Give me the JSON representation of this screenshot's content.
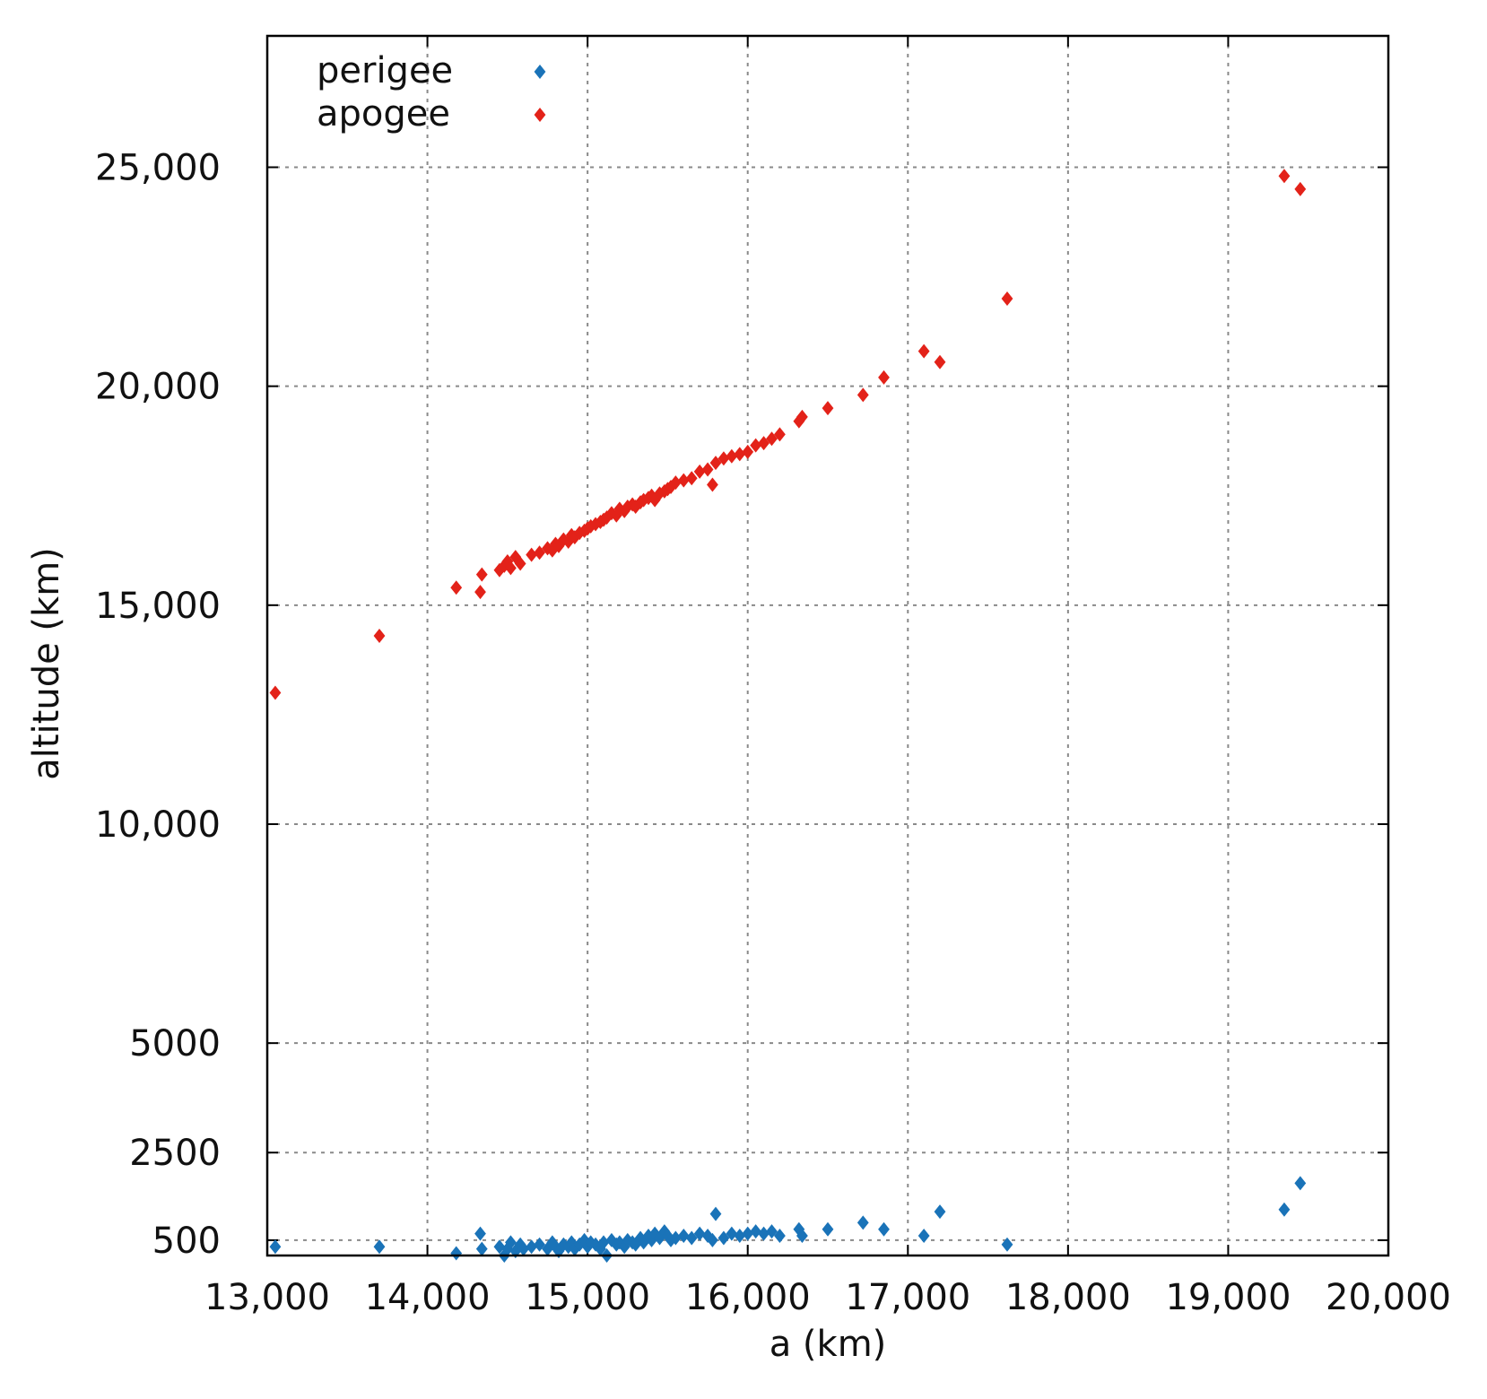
{
  "chart_data": {
    "type": "scatter",
    "title": "",
    "xlabel": "a (km)",
    "ylabel": "altitude (km)",
    "xlim": [
      13000,
      20000
    ],
    "ylim": [
      150,
      28000
    ],
    "grid": true,
    "legend_position": "top-left",
    "x_ticks": [
      13000,
      14000,
      15000,
      16000,
      17000,
      18000,
      19000,
      20000
    ],
    "x_tick_labels": [
      "13,000",
      "14,000",
      "15,000",
      "16,000",
      "17,000",
      "18,000",
      "19,000",
      "20,000"
    ],
    "y_ticks": [
      500,
      2500,
      5000,
      10000,
      15000,
      20000,
      25000
    ],
    "y_tick_labels": [
      "500",
      "2500",
      "5000",
      "10,000",
      "15,000",
      "20,000",
      "25,000"
    ],
    "series": [
      {
        "name": "perigee",
        "color": "#1a73b8",
        "marker": "diamond",
        "points": [
          [
            13050,
            350
          ],
          [
            13700,
            350
          ],
          [
            14180,
            200
          ],
          [
            14330,
            650
          ],
          [
            14340,
            300
          ],
          [
            14450,
            350
          ],
          [
            14480,
            150
          ],
          [
            14500,
            300
          ],
          [
            14520,
            450
          ],
          [
            14550,
            250
          ],
          [
            14580,
            400
          ],
          [
            14600,
            300
          ],
          [
            14650,
            350
          ],
          [
            14700,
            400
          ],
          [
            14750,
            300
          ],
          [
            14780,
            450
          ],
          [
            14800,
            350
          ],
          [
            14820,
            250
          ],
          [
            14850,
            400
          ],
          [
            14880,
            350
          ],
          [
            14900,
            450
          ],
          [
            14920,
            300
          ],
          [
            14950,
            400
          ],
          [
            14980,
            500
          ],
          [
            15000,
            350
          ],
          [
            15020,
            450
          ],
          [
            15050,
            400
          ],
          [
            15080,
            300
          ],
          [
            15100,
            450
          ],
          [
            15120,
            150
          ],
          [
            15150,
            500
          ],
          [
            15180,
            400
          ],
          [
            15200,
            450
          ],
          [
            15230,
            350
          ],
          [
            15250,
            500
          ],
          [
            15280,
            450
          ],
          [
            15300,
            400
          ],
          [
            15330,
            550
          ],
          [
            15350,
            450
          ],
          [
            15380,
            600
          ],
          [
            15400,
            500
          ],
          [
            15420,
            650
          ],
          [
            15450,
            550
          ],
          [
            15480,
            700
          ],
          [
            15500,
            600
          ],
          [
            15520,
            500
          ],
          [
            15550,
            550
          ],
          [
            15600,
            600
          ],
          [
            15650,
            550
          ],
          [
            15700,
            650
          ],
          [
            15750,
            600
          ],
          [
            15780,
            500
          ],
          [
            15800,
            1100
          ],
          [
            15850,
            550
          ],
          [
            15900,
            650
          ],
          [
            15950,
            600
          ],
          [
            16000,
            650
          ],
          [
            16050,
            700
          ],
          [
            16100,
            650
          ],
          [
            16150,
            700
          ],
          [
            16200,
            600
          ],
          [
            16320,
            750
          ],
          [
            16340,
            600
          ],
          [
            16500,
            750
          ],
          [
            16720,
            900
          ],
          [
            16850,
            750
          ],
          [
            17100,
            600
          ],
          [
            17200,
            1150
          ],
          [
            17620,
            400
          ],
          [
            19350,
            1200
          ],
          [
            19450,
            1800
          ]
        ]
      },
      {
        "name": "apogee",
        "color": "#e32219",
        "marker": "diamond",
        "points": [
          [
            13050,
            13000
          ],
          [
            13700,
            14300
          ],
          [
            14180,
            15400
          ],
          [
            14330,
            15300
          ],
          [
            14340,
            15700
          ],
          [
            14450,
            15800
          ],
          [
            14480,
            15900
          ],
          [
            14500,
            16000
          ],
          [
            14520,
            15850
          ],
          [
            14550,
            16100
          ],
          [
            14580,
            15950
          ],
          [
            14650,
            16150
          ],
          [
            14700,
            16200
          ],
          [
            14750,
            16300
          ],
          [
            14780,
            16250
          ],
          [
            14800,
            16400
          ],
          [
            14820,
            16350
          ],
          [
            14850,
            16500
          ],
          [
            14880,
            16450
          ],
          [
            14900,
            16600
          ],
          [
            14920,
            16550
          ],
          [
            14950,
            16650
          ],
          [
            14980,
            16700
          ],
          [
            15000,
            16750
          ],
          [
            15020,
            16800
          ],
          [
            15050,
            16850
          ],
          [
            15080,
            16900
          ],
          [
            15100,
            16950
          ],
          [
            15120,
            17000
          ],
          [
            15150,
            17100
          ],
          [
            15180,
            17050
          ],
          [
            15200,
            17200
          ],
          [
            15230,
            17150
          ],
          [
            15250,
            17250
          ],
          [
            15280,
            17300
          ],
          [
            15300,
            17250
          ],
          [
            15330,
            17350
          ],
          [
            15350,
            17400
          ],
          [
            15380,
            17450
          ],
          [
            15400,
            17500
          ],
          [
            15420,
            17400
          ],
          [
            15450,
            17550
          ],
          [
            15480,
            17600
          ],
          [
            15500,
            17650
          ],
          [
            15520,
            17700
          ],
          [
            15550,
            17800
          ],
          [
            15600,
            17850
          ],
          [
            15650,
            17900
          ],
          [
            15700,
            18050
          ],
          [
            15750,
            18100
          ],
          [
            15780,
            17750
          ],
          [
            15800,
            18250
          ],
          [
            15850,
            18350
          ],
          [
            15900,
            18400
          ],
          [
            15950,
            18450
          ],
          [
            16000,
            18500
          ],
          [
            16050,
            18650
          ],
          [
            16100,
            18700
          ],
          [
            16150,
            18800
          ],
          [
            16200,
            18900
          ],
          [
            16320,
            19200
          ],
          [
            16340,
            19300
          ],
          [
            16500,
            19500
          ],
          [
            16720,
            19800
          ],
          [
            16850,
            20200
          ],
          [
            17100,
            20800
          ],
          [
            17200,
            20550
          ],
          [
            17620,
            22000
          ],
          [
            19350,
            24800
          ],
          [
            19450,
            24500
          ]
        ]
      }
    ]
  }
}
